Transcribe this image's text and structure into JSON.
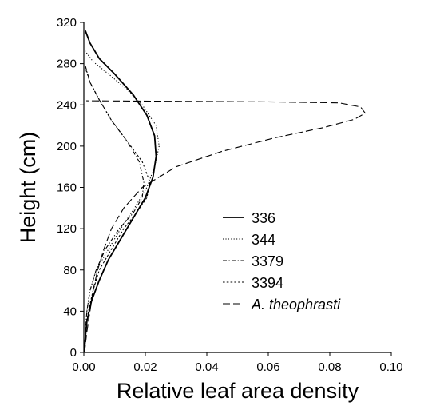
{
  "chart_data": {
    "type": "line",
    "title": "",
    "xlabel": "Relative leaf area density",
    "ylabel": "Height (cm)",
    "xlim": [
      0.0,
      0.1
    ],
    "ylim": [
      0,
      320
    ],
    "x_ticks": [
      "0.00",
      "0.02",
      "0.04",
      "0.06",
      "0.08",
      "0.10"
    ],
    "y_ticks": [
      "0",
      "40",
      "80",
      "120",
      "160",
      "200",
      "240",
      "280",
      "320"
    ],
    "grid": false,
    "legend_position": "center-right",
    "series": [
      {
        "name": "336",
        "dash": "solid",
        "width": 1.8,
        "points": [
          [
            0.0002,
            0
          ],
          [
            0.0005,
            15
          ],
          [
            0.001,
            30
          ],
          [
            0.0025,
            50
          ],
          [
            0.005,
            70
          ],
          [
            0.008,
            90
          ],
          [
            0.012,
            110
          ],
          [
            0.016,
            130
          ],
          [
            0.02,
            150
          ],
          [
            0.0225,
            170
          ],
          [
            0.0235,
            190
          ],
          [
            0.023,
            210
          ],
          [
            0.0205,
            230
          ],
          [
            0.016,
            250
          ],
          [
            0.01,
            270
          ],
          [
            0.005,
            285
          ],
          [
            0.002,
            300
          ],
          [
            0.0005,
            312
          ]
        ]
      },
      {
        "name": "344",
        "dash": "dotted",
        "width": 1.1,
        "points": [
          [
            0.0002,
            0
          ],
          [
            0.0005,
            20
          ],
          [
            0.001,
            40
          ],
          [
            0.002,
            60
          ],
          [
            0.004,
            80
          ],
          [
            0.008,
            100
          ],
          [
            0.012,
            120
          ],
          [
            0.0165,
            140
          ],
          [
            0.0205,
            160
          ],
          [
            0.023,
            180
          ],
          [
            0.0245,
            200
          ],
          [
            0.0235,
            220
          ],
          [
            0.019,
            240
          ],
          [
            0.014,
            255
          ],
          [
            0.008,
            270
          ],
          [
            0.003,
            282
          ],
          [
            0.0005,
            292
          ]
        ]
      },
      {
        "name": "3379",
        "dash": "dash-dot",
        "width": 1.1,
        "points": [
          [
            0.0002,
            0
          ],
          [
            0.0005,
            20
          ],
          [
            0.001,
            40
          ],
          [
            0.002,
            60
          ],
          [
            0.004,
            80
          ],
          [
            0.007,
            100
          ],
          [
            0.0115,
            120
          ],
          [
            0.016,
            135
          ],
          [
            0.019,
            150
          ],
          [
            0.0195,
            165
          ],
          [
            0.018,
            185
          ],
          [
            0.014,
            205
          ],
          [
            0.009,
            225
          ],
          [
            0.005,
            245
          ],
          [
            0.002,
            262
          ],
          [
            0.0005,
            278
          ]
        ]
      },
      {
        "name": "3394",
        "dash": "short-dash",
        "width": 1.1,
        "points": [
          [
            0.0002,
            0
          ],
          [
            0.0005,
            20
          ],
          [
            0.0015,
            40
          ],
          [
            0.003,
            60
          ],
          [
            0.005,
            80
          ],
          [
            0.009,
            100
          ],
          [
            0.013,
            120
          ],
          [
            0.017,
            135
          ],
          [
            0.0205,
            150
          ],
          [
            0.0215,
            165
          ],
          [
            0.019,
            185
          ],
          [
            0.014,
            205
          ],
          [
            0.009,
            225
          ],
          [
            0.005,
            245
          ],
          [
            0.002,
            262
          ],
          [
            0.0005,
            276
          ]
        ]
      },
      {
        "name": "A. theophrasti",
        "dash": "long-dash",
        "width": 1.1,
        "points": [
          [
            0.0002,
            0
          ],
          [
            0.001,
            20
          ],
          [
            0.002,
            40
          ],
          [
            0.003,
            60
          ],
          [
            0.0045,
            80
          ],
          [
            0.0065,
            100
          ],
          [
            0.009,
            120
          ],
          [
            0.013,
            140
          ],
          [
            0.019,
            160
          ],
          [
            0.03,
            180
          ],
          [
            0.045,
            195
          ],
          [
            0.062,
            208
          ],
          [
            0.078,
            218
          ],
          [
            0.088,
            226
          ],
          [
            0.0915,
            232
          ],
          [
            0.09,
            238
          ],
          [
            0.083,
            242
          ],
          [
            0.06,
            243
          ],
          [
            0.03,
            243.5
          ],
          [
            0.0008,
            244
          ]
        ]
      }
    ]
  }
}
